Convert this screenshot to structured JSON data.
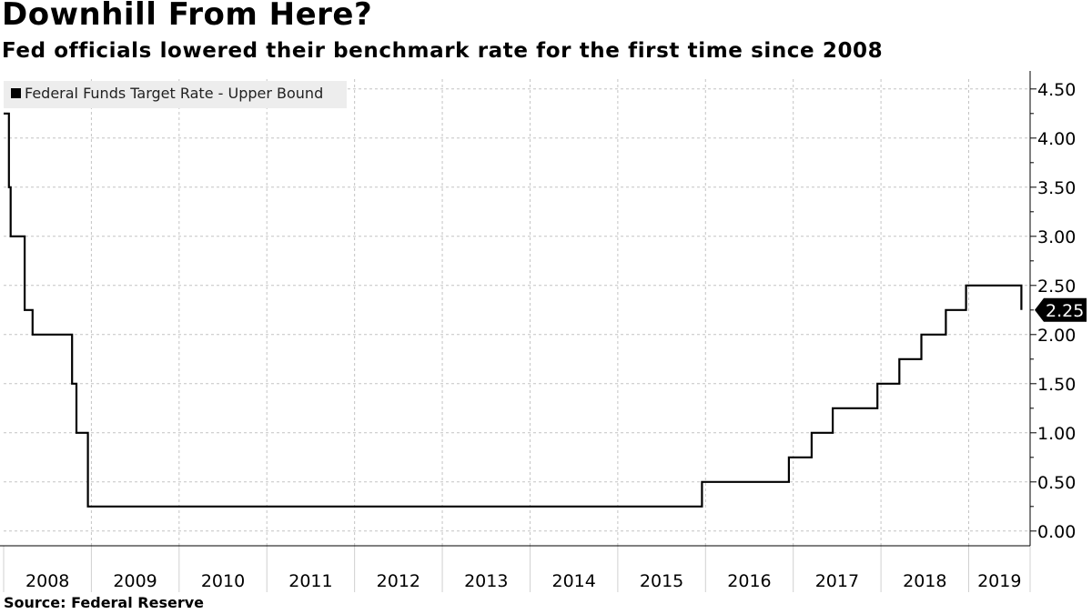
{
  "chart_data": {
    "type": "line",
    "title": "Downhill From Here?",
    "subtitle": "Fed officials lowered their benchmark rate for the first time since 2008",
    "source": "Source:  Federal Reserve",
    "legend": "Federal Funds Target Rate - Upper Bound",
    "legend_position": "top-left",
    "last_value_label": "2.25",
    "ylim": [
      -0.15,
      4.6
    ],
    "yticks": [
      0.0,
      0.5,
      1.0,
      1.5,
      2.0,
      2.5,
      3.0,
      3.5,
      4.0,
      4.5
    ],
    "ytick_labels": [
      "0.00",
      "0.50",
      "1.00",
      "1.50",
      "2.00",
      "2.50",
      "3.00",
      "3.50",
      "4.00",
      "4.50"
    ],
    "xlim": [
      2008.0,
      2019.7
    ],
    "x_tick_labels": [
      "2008",
      "2009",
      "2010",
      "2011",
      "2012",
      "2013",
      "2014",
      "2015",
      "2016",
      "2017",
      "2018",
      "2019"
    ],
    "grid": true,
    "series": [
      {
        "name": "Federal Funds Target Rate - Upper Bound",
        "step": true,
        "x": [
          2008.0,
          2008.06,
          2008.08,
          2008.24,
          2008.33,
          2008.78,
          2008.83,
          2008.96,
          2015.96,
          2016.95,
          2017.21,
          2017.45,
          2017.96,
          2018.21,
          2018.46,
          2018.74,
          2018.97,
          2019.58,
          2019.6
        ],
        "values": [
          4.25,
          3.5,
          3.0,
          2.25,
          2.0,
          1.5,
          1.0,
          0.25,
          0.5,
          0.75,
          1.0,
          1.25,
          1.5,
          1.75,
          2.0,
          2.25,
          2.5,
          2.5,
          2.25
        ]
      }
    ]
  }
}
